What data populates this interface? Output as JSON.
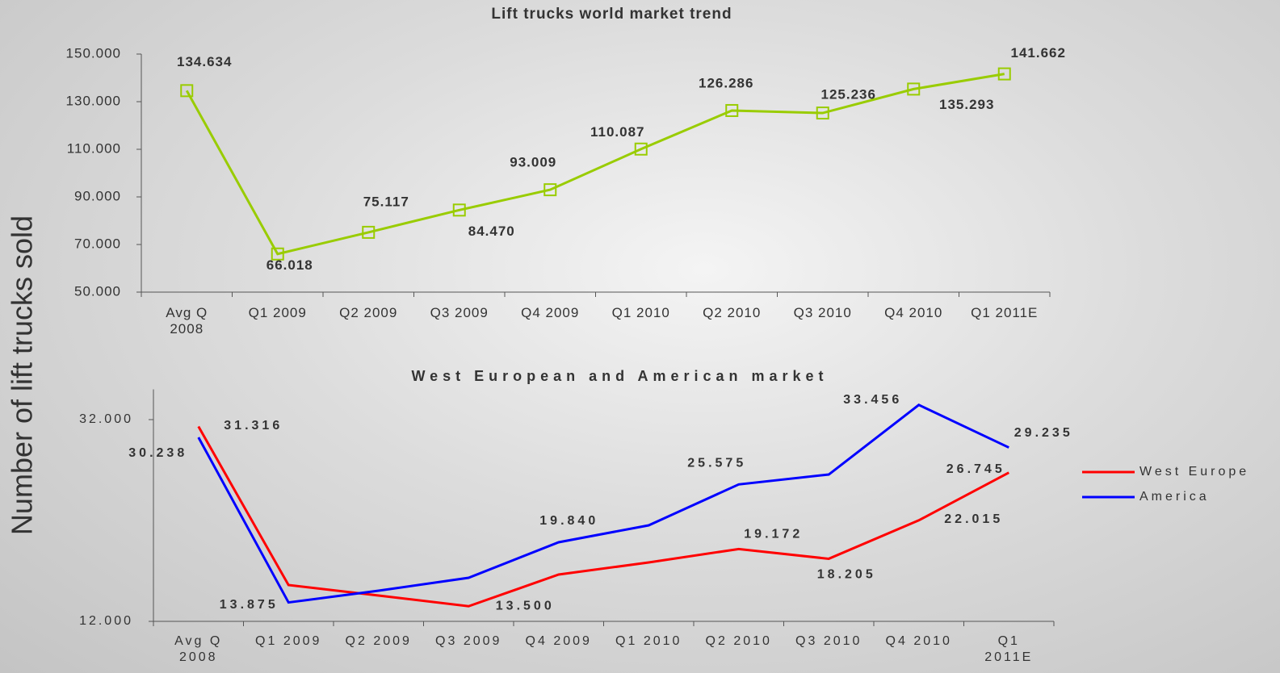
{
  "y_axis_label": "Number of lift trucks sold",
  "chart_data": [
    {
      "type": "line",
      "title": "Lift trucks world market trend",
      "categories": [
        "Avg Q 2008",
        "Q1 2009",
        "Q2 2009",
        "Q3 2009",
        "Q4 2009",
        "Q1 2010",
        "Q2 2010",
        "Q3 2010",
        "Q4 2010",
        "Q1 2011E"
      ],
      "values": [
        134634,
        66018,
        75117,
        84470,
        93009,
        110087,
        126286,
        125236,
        135293,
        141662
      ],
      "value_labels": [
        "134.634",
        "66.018",
        "75.117",
        "84.470",
        "93.009",
        "110.087",
        "126.286",
        "125.236",
        "135.293",
        "141.662"
      ],
      "color": "#99cc00",
      "marker": "square",
      "ylim": [
        50000,
        150000
      ],
      "yticks": [
        {
          "value": 50000,
          "label": "50.000"
        },
        {
          "value": 70000,
          "label": "70.000"
        },
        {
          "value": 90000,
          "label": "90.000"
        },
        {
          "value": 110000,
          "label": "110.000"
        },
        {
          "value": 130000,
          "label": "130.000"
        },
        {
          "value": 150000,
          "label": "150.000"
        }
      ]
    },
    {
      "type": "line",
      "title": "West European and American market",
      "categories": [
        "Avg Q 2008",
        "Q1 2009",
        "Q2 2009",
        "Q3 2009",
        "Q4 2009",
        "Q1 2010",
        "Q2 2010",
        "Q3 2010",
        "Q4 2010",
        "Q1 2011E"
      ],
      "series": [
        {
          "name": "West Europe",
          "color": "#ff0000",
          "values": [
            31316,
            15600,
            14560,
            13500,
            16640,
            17840,
            19172,
            18205,
            22015,
            26745
          ],
          "value_labels": [
            "31.316",
            null,
            null,
            "13.500",
            null,
            null,
            "19.172",
            "18.205",
            "22.015",
            "26.745"
          ]
        },
        {
          "name": "America",
          "color": "#0000ff",
          "values": [
            30238,
            13875,
            15040,
            16320,
            19840,
            21520,
            25575,
            26560,
            33456,
            29235
          ],
          "value_labels": [
            "30.238",
            "13.875",
            null,
            null,
            "19.840",
            null,
            "25.575",
            null,
            "33.456",
            "29.235"
          ]
        }
      ],
      "ylim": [
        12000,
        35000
      ],
      "yticks": [
        {
          "value": 12000,
          "label": "12.000"
        },
        {
          "value": 32000,
          "label": "32.000"
        }
      ],
      "legend": "right"
    }
  ]
}
